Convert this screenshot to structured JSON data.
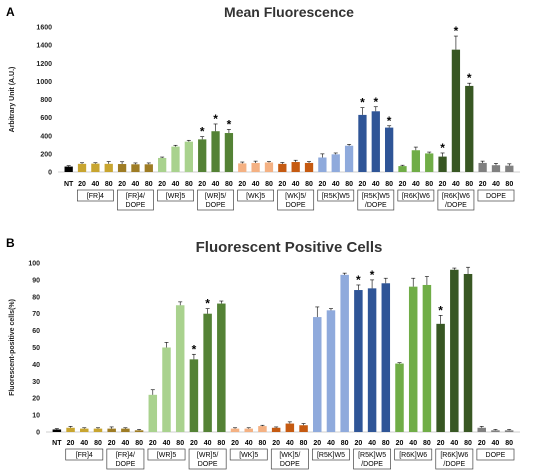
{
  "colors": {
    "FR": "#c8a530",
    "FRDOPE": "#9e7c24",
    "WRlight": "#a9d28e",
    "WRdark": "#548235",
    "WKlight": "#f4b183",
    "WKdark": "#c55a11",
    "R5Klight": "#8faadc",
    "R5Kdark": "#2f5597",
    "R6Klight": "#70ad47",
    "R6Kdark": "#385723",
    "NT": "#000000",
    "DOPE": "#808080"
  },
  "chart_data": [
    {
      "panel": "A",
      "type": "bar",
      "title": "Mean Fluorescence",
      "ylabel": "Arbitrary Unit (A.U.)",
      "xlabel": "",
      "ylim": [
        0,
        1600
      ],
      "yticks": [
        0,
        200,
        400,
        600,
        800,
        1000,
        1200,
        1400,
        1600
      ],
      "nt": {
        "label": "NT",
        "value": 60,
        "error": 10
      },
      "groups": [
        {
          "name": "[FR]4",
          "color": "FR",
          "ticks": [
            "20",
            "40",
            "80"
          ],
          "values": [
            90,
            92,
            90
          ],
          "errors": [
            12,
            10,
            25
          ],
          "stars": [
            false,
            false,
            false
          ]
        },
        {
          "name": "[FR]4/\nDOPE",
          "color": "FRDOPE",
          "ticks": [
            "20",
            "40",
            "80"
          ],
          "values": [
            88,
            85,
            85
          ],
          "errors": [
            25,
            15,
            15
          ],
          "stars": [
            false,
            false,
            false
          ]
        },
        {
          "name": "[WR]5",
          "color": "WRlight",
          "ticks": [
            "20",
            "40",
            "80"
          ],
          "values": [
            155,
            280,
            335
          ],
          "errors": [
            10,
            15,
            15
          ],
          "stars": [
            false,
            false,
            false
          ]
        },
        {
          "name": "[WR]5/\nDOPE",
          "color": "WRdark",
          "ticks": [
            "20",
            "40",
            "80"
          ],
          "values": [
            360,
            450,
            430
          ],
          "errors": [
            30,
            80,
            40
          ],
          "stars": [
            true,
            true,
            true
          ]
        },
        {
          "name": "[WK]5",
          "color": "WKlight",
          "ticks": [
            "20",
            "40",
            "80"
          ],
          "values": [
            95,
            100,
            105
          ],
          "errors": [
            15,
            20,
            10
          ],
          "stars": [
            false,
            false,
            false
          ]
        },
        {
          "name": "[WK]5/\nDOPE",
          "color": "WKdark",
          "ticks": [
            "20",
            "40",
            "80"
          ],
          "values": [
            90,
            110,
            100
          ],
          "errors": [
            15,
            20,
            15
          ],
          "stars": [
            false,
            false,
            false
          ]
        },
        {
          "name": "[R5K]W5",
          "color": "R5Klight",
          "ticks": [
            "20",
            "40",
            "80"
          ],
          "values": [
            160,
            195,
            290
          ],
          "errors": [
            40,
            15,
            15
          ],
          "stars": [
            false,
            false,
            false
          ]
        },
        {
          "name": "[R5K]W5\n/DOPE",
          "color": "R5Kdark",
          "ticks": [
            "20",
            "40",
            "80"
          ],
          "values": [
            630,
            670,
            490
          ],
          "errors": [
            80,
            50,
            20
          ],
          "stars": [
            true,
            true,
            true
          ]
        },
        {
          "name": "[R6K]W6",
          "color": "R6Klight",
          "ticks": [
            "20",
            "40",
            "80"
          ],
          "values": [
            65,
            240,
            205
          ],
          "errors": [
            10,
            35,
            15
          ],
          "stars": [
            false,
            false,
            false
          ]
        },
        {
          "name": "[R6K]W6\n/DOPE",
          "color": "R6Kdark",
          "ticks": [
            "20",
            "40",
            "80"
          ],
          "values": [
            170,
            1350,
            950
          ],
          "errors": [
            40,
            150,
            30
          ],
          "stars": [
            true,
            true,
            true
          ]
        },
        {
          "name": "DOPE",
          "color": "DOPE",
          "ticks": [
            "20",
            "40",
            "80"
          ],
          "values": [
            100,
            75,
            70
          ],
          "errors": [
            20,
            20,
            20
          ],
          "stars": [
            false,
            false,
            false
          ]
        }
      ]
    },
    {
      "panel": "B",
      "type": "bar",
      "title": "Fluorescent Positive Cells",
      "ylabel": "Fluorescent-positive cells(%)",
      "xlabel": "",
      "ylim": [
        0,
        100
      ],
      "yticks": [
        0,
        10,
        20,
        30,
        40,
        50,
        60,
        70,
        80,
        90,
        100
      ],
      "nt": {
        "label": "NT",
        "value": 1.5,
        "error": 0.5
      },
      "groups": [
        {
          "name": "[FR]4",
          "color": "FR",
          "ticks": [
            "20",
            "40",
            "80"
          ],
          "values": [
            2.5,
            2,
            2
          ],
          "errors": [
            0.8,
            0.5,
            0.5
          ],
          "stars": [
            false,
            false,
            false
          ]
        },
        {
          "name": "[FR]4/\nDOPE",
          "color": "FRDOPE",
          "ticks": [
            "20",
            "40",
            "80"
          ],
          "values": [
            2,
            2,
            1
          ],
          "errors": [
            1,
            0.5,
            0.5
          ],
          "stars": [
            false,
            false,
            false
          ]
        },
        {
          "name": "[WR]5",
          "color": "WRlight",
          "ticks": [
            "20",
            "40",
            "80"
          ],
          "values": [
            22,
            50,
            75
          ],
          "errors": [
            3,
            3,
            2
          ],
          "stars": [
            false,
            false,
            false
          ]
        },
        {
          "name": "[WR]5/\nDOPE",
          "color": "WRdark",
          "ticks": [
            "20",
            "40",
            "80"
          ],
          "values": [
            43,
            70,
            76
          ],
          "errors": [
            3,
            3,
            1.5
          ],
          "stars": [
            true,
            true,
            false
          ]
        },
        {
          "name": "[WK]5",
          "color": "WKlight",
          "ticks": [
            "20",
            "40",
            "80"
          ],
          "values": [
            2,
            2,
            3.5
          ],
          "errors": [
            0.5,
            0.5,
            0.5
          ],
          "stars": [
            false,
            false,
            false
          ]
        },
        {
          "name": "[WK]5/\nDOPE",
          "color": "WKdark",
          "ticks": [
            "20",
            "40",
            "80"
          ],
          "values": [
            2.5,
            5,
            4
          ],
          "errors": [
            0.5,
            1,
            1
          ],
          "stars": [
            false,
            false,
            false
          ]
        },
        {
          "name": "[R5K]W5",
          "color": "R5Klight",
          "ticks": [
            "20",
            "40",
            "80"
          ],
          "values": [
            68,
            72,
            93
          ],
          "errors": [
            6,
            1,
            1
          ],
          "stars": [
            false,
            false,
            false
          ]
        },
        {
          "name": "[R5K]W5\n/DOPE",
          "color": "R5Kdark",
          "ticks": [
            "20",
            "40",
            "80"
          ],
          "values": [
            84,
            85,
            88
          ],
          "errors": [
            3,
            5,
            3
          ],
          "stars": [
            true,
            true,
            false
          ]
        },
        {
          "name": "[R6K]W6",
          "color": "R6Klight",
          "ticks": [
            "20",
            "40",
            "80"
          ],
          "values": [
            40.5,
            86,
            87
          ],
          "errors": [
            0.5,
            5,
            5
          ],
          "stars": [
            false,
            false,
            false
          ]
        },
        {
          "name": "[R6K]W6\n/DOPE",
          "color": "R6Kdark",
          "ticks": [
            "20",
            "40",
            "80"
          ],
          "values": [
            64,
            96,
            93.5
          ],
          "errors": [
            5,
            1,
            4
          ],
          "stars": [
            true,
            false,
            false
          ]
        },
        {
          "name": "DOPE",
          "color": "DOPE",
          "ticks": [
            "20",
            "40",
            "80"
          ],
          "values": [
            2.5,
            1,
            1
          ],
          "errors": [
            0.8,
            0.5,
            0.5
          ],
          "stars": [
            false,
            false,
            false
          ]
        }
      ]
    }
  ]
}
